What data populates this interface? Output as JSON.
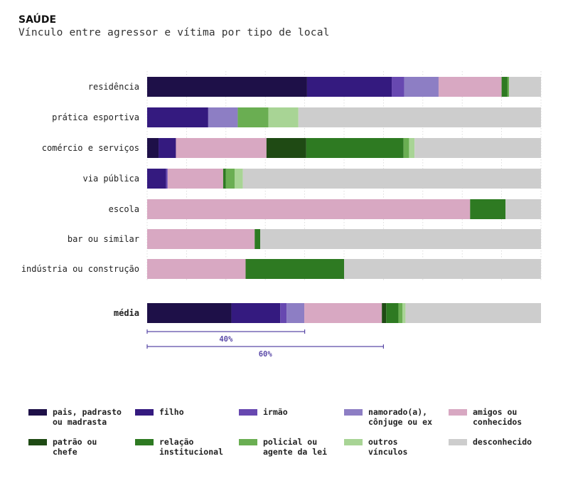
{
  "header": {
    "title": "SAÚDE",
    "subtitle": "Vínculo entre agressor e vítima por tipo de local"
  },
  "colors": {
    "pais_padrasto_madrasta": "#1e1048",
    "filho": "#341a7f",
    "irmao": "#6748b0",
    "namorado": "#8d7ec4",
    "amigos": "#d8a8c2",
    "patrao": "#1f4a14",
    "relacao_institucional": "#2e7a22",
    "policial": "#6aae52",
    "outros": "#a8d495",
    "desconhecido": "#cdcdcd"
  },
  "legend": [
    {
      "key": "pais_padrasto_madrasta",
      "label": "pais, padrasto\nou madrasta",
      "color": "#1e1048"
    },
    {
      "key": "filho",
      "label": "filho",
      "color": "#341a7f"
    },
    {
      "key": "irmao",
      "label": "irmão",
      "color": "#6748b0"
    },
    {
      "key": "namorado",
      "label": "namorado(a),\ncônjuge ou ex",
      "color": "#8d7ec4"
    },
    {
      "key": "amigos",
      "label": "amigos ou\nconhecidos",
      "color": "#d8a8c2"
    },
    {
      "key": "patrao",
      "label": "patrão ou\nchefe",
      "color": "#1f4a14"
    },
    {
      "key": "relacao_institucional",
      "label": "relação\ninstitucional",
      "color": "#2e7a22"
    },
    {
      "key": "policial",
      "label": "policial ou\nagente da lei",
      "color": "#6aae52"
    },
    {
      "key": "outros",
      "label": "outros\nvínculos",
      "color": "#a8d495"
    },
    {
      "key": "desconhecido",
      "label": "desconhecido",
      "color": "#cdcdcd"
    }
  ],
  "chart_data": {
    "type": "bar",
    "orientation": "horizontal",
    "stacked": "100%",
    "title": "Vínculo entre agressor e vítima por tipo de local",
    "xlim": [
      0,
      100
    ],
    "categories": [
      "residência",
      "prática esportiva",
      "comércio e serviços",
      "via pública",
      "escola",
      "bar ou similar",
      "indústria ou construção",
      "média"
    ],
    "highlighted_category": "média",
    "series": [
      {
        "name": "pais, padrasto ou madrasta",
        "values": [
          40.6,
          0,
          2.9,
          0,
          0,
          0,
          0,
          21.4
        ]
      },
      {
        "name": "filho",
        "values": [
          21.5,
          15.5,
          4.4,
          4.8,
          0,
          0,
          0,
          12.4
        ]
      },
      {
        "name": "irmão",
        "values": [
          3.2,
          0,
          0,
          0.4,
          0,
          0,
          0,
          1.6
        ]
      },
      {
        "name": "namorado(a), cônjuge ou ex",
        "values": [
          8.7,
          7.5,
          0,
          0,
          0,
          0,
          0,
          4.5
        ]
      },
      {
        "name": "amigos ou conhecidos",
        "values": [
          16.0,
          0,
          23.0,
          14.1,
          82.0,
          27.3,
          25.0,
          19.7
        ]
      },
      {
        "name": "patrão ou chefe",
        "values": [
          0,
          0,
          10.1,
          0,
          0,
          0,
          0,
          1.1
        ]
      },
      {
        "name": "relação institucional",
        "values": [
          1.5,
          0,
          24.7,
          0.7,
          9.0,
          1.4,
          25.0,
          3.1
        ]
      },
      {
        "name": "policial ou agente da lei",
        "values": [
          0.4,
          7.8,
          1.4,
          2.2,
          0,
          0,
          0,
          1.0
        ]
      },
      {
        "name": "outros vínculos",
        "values": [
          0,
          7.6,
          1.4,
          2.1,
          0,
          0,
          0,
          0.8
        ]
      },
      {
        "name": "desconhecido",
        "values": [
          8.1,
          61.6,
          32.1,
          75.7,
          9.0,
          71.3,
          50.0,
          34.4
        ]
      }
    ],
    "reference_lines": [
      {
        "label": "40%",
        "value": 40
      },
      {
        "label": "60%",
        "value": 60
      }
    ]
  }
}
